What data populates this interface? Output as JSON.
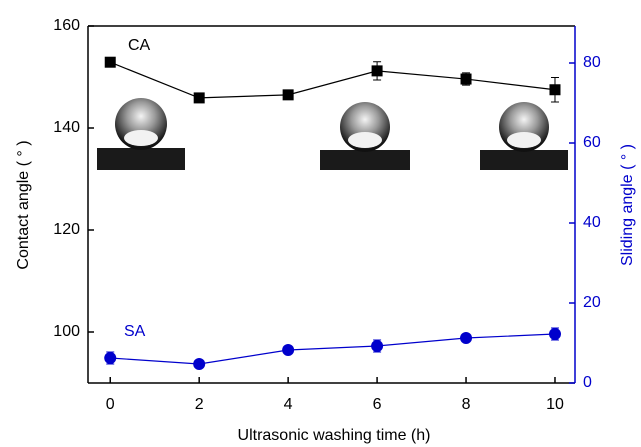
{
  "chart_data": {
    "type": "line",
    "x_label": "Ultrasonic washing time (h)",
    "y_label": "Contact angle ( ° )",
    "y2_label": "Sliding angle ( ° )",
    "x": [
      0,
      2,
      4,
      6,
      8,
      10
    ],
    "xlim": [
      -0.5,
      10.45
    ],
    "xticks": [
      0,
      2,
      4,
      6,
      8,
      10
    ],
    "ylim": [
      90,
      160
    ],
    "yticks": [
      100,
      120,
      140,
      160
    ],
    "y2lim": [
      0,
      89.25
    ],
    "y2ticks": [
      0,
      20,
      40,
      60,
      80
    ],
    "y2_color": "#0000cc",
    "series": [
      {
        "name": "CA",
        "color": "#000000",
        "marker": "square",
        "axis": "y",
        "values": [
          152.9,
          145.9,
          146.5,
          151.2,
          149.6,
          147.5
        ],
        "errors": [
          0.5,
          0.8,
          0.6,
          1.8,
          1.2,
          2.4
        ]
      },
      {
        "name": "SA",
        "color": "#0000cc",
        "marker": "circle",
        "axis": "y2",
        "values": [
          6.25,
          4.75,
          8.25,
          9.25,
          11.25,
          12.25
        ],
        "errors": [
          1.5,
          0.5,
          0.8,
          1.5,
          0.8,
          1.5
        ]
      }
    ]
  }
}
